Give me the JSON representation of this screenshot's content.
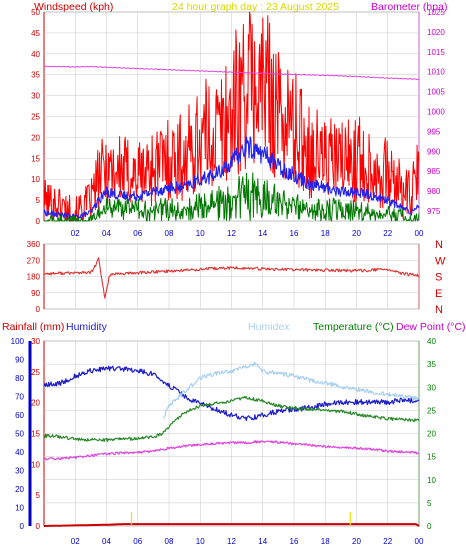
{
  "header": {
    "windspeed": "Windspeed (kph)",
    "graph_title": "24 hour graph day : 23 August 2025",
    "barometer": "Barometer (hpa)",
    "rainfall": "Rainfall (mm)",
    "humidity": "Humidity",
    "humidex": "Humidex",
    "temperature": "Temperature (°C)",
    "dew_point": "Dew Point (°C)"
  },
  "colors": {
    "background": "#ffffff",
    "axis_red": "#cc0000",
    "axis_magenta": "#cc00cc",
    "axis_blue": "#0000cc",
    "axis_green": "#008000",
    "title_yellow": "#d8d800",
    "grid": "#c8c8c8",
    "gust": "#ff0000",
    "avg_wind": "#2222ee",
    "min_wind": "#007700",
    "barometer": "#dd44dd",
    "direction": "#dd3333",
    "humidity": "#1e1ec8",
    "humidex": "#a8d0f0",
    "temperature": "#2a8a2a",
    "dew_point": "#dd44dd",
    "rain": "#cc0000",
    "rain_marker": "#e8e800"
  },
  "chart_data": [
    {
      "id": "wind",
      "type": "line",
      "x_ticks": [
        "02",
        "04",
        "06",
        "08",
        "10",
        "12",
        "14",
        "16",
        "18",
        "20",
        "22",
        "00"
      ],
      "x_range_hours": [
        0,
        24
      ],
      "grid": true,
      "y_left": {
        "label": "Windspeed (kph)",
        "range": [
          0,
          50
        ],
        "ticks": [
          0,
          5,
          10,
          15,
          20,
          25,
          30,
          35,
          40,
          45,
          50
        ]
      },
      "y_right": {
        "label": "Barometer (hpa)",
        "range": [
          972.5,
          1025
        ],
        "ticks": [
          975,
          980,
          985,
          990,
          995,
          1000,
          1005,
          1010,
          1015,
          1020,
          1025
        ]
      },
      "series": [
        {
          "key": "gust",
          "axis": "left",
          "x": [
            0,
            1,
            2,
            3,
            3.5,
            4,
            5,
            6,
            7,
            8,
            9,
            10,
            11,
            12,
            12.5,
            13,
            13.5,
            14,
            14.5,
            15,
            16,
            17,
            18,
            19,
            20,
            21,
            22,
            23,
            23.5,
            24
          ],
          "y": [
            5,
            4,
            2,
            5,
            10,
            13,
            12,
            11,
            13,
            15,
            15,
            20,
            21,
            26,
            30,
            33,
            32,
            33,
            30,
            26,
            22,
            17,
            15,
            14,
            15,
            13,
            11,
            7,
            6,
            12
          ]
        },
        {
          "key": "average",
          "axis": "left",
          "x": [
            0,
            1,
            2,
            3,
            3.5,
            4,
            5,
            6,
            7,
            8,
            9,
            10,
            11,
            12,
            12.5,
            13,
            13.5,
            14,
            14.5,
            15,
            16,
            17,
            18,
            19,
            20,
            21,
            22,
            23,
            23.5,
            24
          ],
          "y": [
            2,
            1.5,
            1,
            2,
            5,
            7,
            6,
            6,
            7,
            8,
            8,
            10,
            11,
            14,
            16,
            18,
            17,
            16,
            15,
            13,
            11,
            9,
            8,
            7,
            7,
            6,
            5,
            3,
            2,
            4
          ]
        },
        {
          "key": "minimum",
          "axis": "left",
          "x": [
            0,
            1,
            2,
            3,
            3.5,
            4,
            5,
            6,
            7,
            8,
            9,
            10,
            11,
            12,
            12.5,
            13,
            13.5,
            14,
            14.5,
            15,
            16,
            17,
            18,
            19,
            20,
            21,
            22,
            23,
            23.5,
            24
          ],
          "y": [
            0,
            0,
            0,
            0,
            2,
            3,
            3,
            3,
            3,
            3,
            3,
            4,
            5,
            6,
            7,
            8,
            8,
            7,
            6,
            5,
            4,
            3,
            3,
            3,
            3,
            2,
            2,
            1,
            0,
            1
          ]
        },
        {
          "key": "barometer",
          "axis": "right",
          "x": [
            0,
            1,
            2,
            3,
            4,
            6,
            8,
            10,
            12,
            14,
            16,
            18,
            20,
            22,
            24
          ],
          "y": [
            1011.3,
            1011.3,
            1011.2,
            1011.3,
            1011.1,
            1010.8,
            1010.5,
            1010.2,
            1009.9,
            1009.6,
            1009.3,
            1009.1,
            1008.8,
            1008.4,
            1008.1
          ]
        }
      ]
    },
    {
      "id": "direction",
      "type": "line",
      "x_ticks": [],
      "x_range_hours": [
        0,
        24
      ],
      "grid": true,
      "y_left": {
        "range": [
          0,
          360
        ],
        "ticks": [
          0,
          90,
          180,
          270,
          360
        ]
      },
      "y_right": {
        "labels": [
          "N",
          "W",
          "S",
          "E",
          "N"
        ]
      },
      "series": [
        {
          "key": "direction",
          "x": [
            0,
            1,
            2,
            3,
            3.3,
            3.5,
            3.7,
            3.9,
            4.2,
            5,
            6,
            8,
            10,
            12,
            14,
            16,
            18,
            20,
            22,
            22.5,
            23,
            24
          ],
          "y": [
            195,
            198,
            200,
            202,
            240,
            280,
            160,
            60,
            190,
            195,
            200,
            210,
            220,
            228,
            222,
            218,
            215,
            212,
            220,
            205,
            195,
            185
          ]
        }
      ]
    },
    {
      "id": "temperature",
      "type": "line",
      "x_ticks": [
        "02",
        "04",
        "06",
        "08",
        "10",
        "12",
        "14",
        "16",
        "18",
        "20",
        "22",
        "00"
      ],
      "x_range_hours": [
        0,
        24
      ],
      "grid": true,
      "y_left_humidity": {
        "label": "Humidity",
        "range": [
          0,
          100
        ],
        "ticks": [
          0,
          10,
          20,
          30,
          40,
          50,
          60,
          70,
          80,
          90,
          100
        ]
      },
      "y_left_rain": {
        "label": "Rainfall (mm)",
        "range": [
          0,
          30
        ],
        "ticks": [
          0,
          5,
          10,
          15,
          20,
          25,
          30
        ]
      },
      "y_right": {
        "label": "Temperature (°C)",
        "range": [
          0,
          40
        ],
        "ticks": [
          0,
          5,
          10,
          15,
          20,
          25,
          30,
          35,
          40
        ]
      },
      "series": [
        {
          "key": "humidity",
          "axis": "humidity",
          "x": [
            0,
            1,
            2,
            3,
            4,
            5,
            6,
            7,
            8,
            9,
            10,
            11,
            12,
            13,
            14,
            15,
            16,
            17,
            18,
            19,
            20,
            21,
            22,
            23,
            24
          ],
          "y": [
            76,
            77,
            81,
            84,
            85,
            85,
            84,
            82,
            76,
            70,
            66,
            63,
            60,
            58,
            60,
            62,
            63,
            64,
            66,
            67,
            67,
            67,
            67,
            68,
            68
          ]
        },
        {
          "key": "humidex",
          "axis": "right",
          "x": [
            0,
            7.4,
            7.6,
            8,
            9,
            10,
            11,
            12,
            13,
            13.5,
            14,
            15,
            16,
            17,
            18,
            19,
            20,
            21,
            22,
            23,
            24
          ],
          "y": [
            null,
            null,
            23,
            26,
            29,
            32,
            33,
            33.5,
            34.5,
            35,
            33.5,
            33,
            32.5,
            31.5,
            31,
            30,
            29.5,
            29,
            28.5,
            28,
            27.5
          ]
        },
        {
          "key": "temperature",
          "axis": "right",
          "x": [
            0,
            1,
            2,
            3,
            4,
            5,
            6,
            7,
            7.5,
            8,
            9,
            10,
            11,
            12,
            13,
            14,
            15,
            16,
            17,
            18,
            19,
            20,
            21,
            22,
            23,
            24
          ],
          "y": [
            19.5,
            19.3,
            18.8,
            18.6,
            18.6,
            18.8,
            18.9,
            19.3,
            19.8,
            21.5,
            24.5,
            26,
            26.5,
            27,
            27.8,
            27,
            26,
            25.5,
            25.3,
            25,
            24.8,
            24.2,
            23.6,
            23.2,
            23,
            22.8
          ]
        },
        {
          "key": "dew_point",
          "axis": "right",
          "x": [
            0,
            1,
            2,
            3,
            4,
            5,
            6,
            7,
            8,
            9,
            10,
            11,
            12,
            13,
            14,
            15,
            16,
            17,
            18,
            19,
            20,
            21,
            22,
            23,
            24
          ],
          "y": [
            14.5,
            14.6,
            14.8,
            15.2,
            15.6,
            15.8,
            15.9,
            16.2,
            16.8,
            17.3,
            17.6,
            17.8,
            18.0,
            18.0,
            18.3,
            18.1,
            17.8,
            17.5,
            17.2,
            17.0,
            16.8,
            16.6,
            16.2,
            16.0,
            15.8
          ]
        },
        {
          "key": "rainfall",
          "axis": "rain",
          "x": [
            0,
            4,
            5,
            6,
            23.8,
            24
          ],
          "y": [
            0,
            0.2,
            0.3,
            0.3,
            0.3,
            0
          ]
        }
      ],
      "rain_markers_hours": [
        5.6,
        19.6
      ]
    }
  ]
}
